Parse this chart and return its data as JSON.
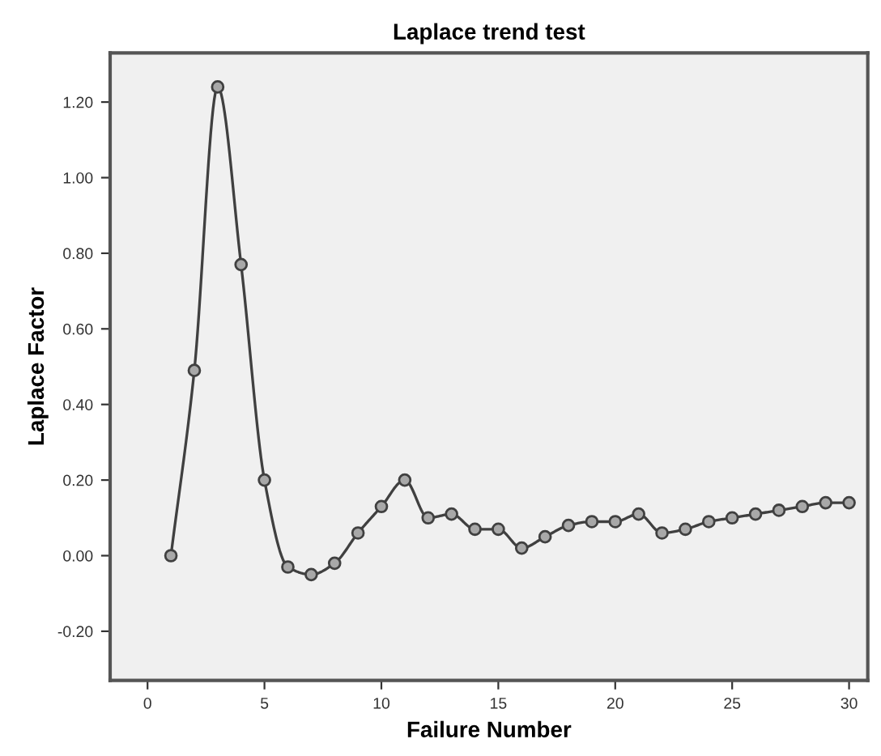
{
  "chart_data": {
    "type": "line",
    "title": "Laplace trend test",
    "xlabel": "Failure Number",
    "ylabel": "Laplace Factor",
    "x": [
      1,
      2,
      3,
      4,
      5,
      6,
      7,
      8,
      9,
      10,
      11,
      12,
      13,
      14,
      15,
      16,
      17,
      18,
      19,
      20,
      21,
      22,
      23,
      24,
      25,
      26,
      27,
      28,
      29,
      30
    ],
    "series": [
      {
        "color": "#404040",
        "values": [
          0.0,
          0.49,
          1.24,
          0.77,
          0.2,
          -0.03,
          -0.05,
          -0.02,
          0.06,
          0.13,
          0.2,
          0.1,
          0.11,
          0.07,
          0.07,
          0.02,
          0.05,
          0.08,
          0.09,
          0.09,
          0.11,
          0.06,
          0.07,
          0.09,
          0.1,
          0.11,
          0.12,
          0.13,
          0.14,
          0.14
        ]
      }
    ],
    "xlim": [
      -1.6,
      30.8
    ],
    "ylim": [
      -0.33,
      1.33
    ],
    "xticks": [
      0,
      5,
      10,
      15,
      20,
      25,
      30
    ],
    "yticks": [
      {
        "value": -0.2,
        "label": "-0.20"
      },
      {
        "value": 0,
        "label": "0.00"
      },
      {
        "value": 0.2,
        "label": "0.20"
      },
      {
        "value": 0.4,
        "label": "0.40"
      },
      {
        "value": 0.6,
        "label": "0.60"
      },
      {
        "value": 0.8,
        "label": "0.80"
      },
      {
        "value": 1.0,
        "label": "1.00"
      },
      {
        "value": 1.2,
        "label": "1.20"
      }
    ],
    "grid": false,
    "legend": false,
    "marker": "circle",
    "line_style": "solid"
  }
}
